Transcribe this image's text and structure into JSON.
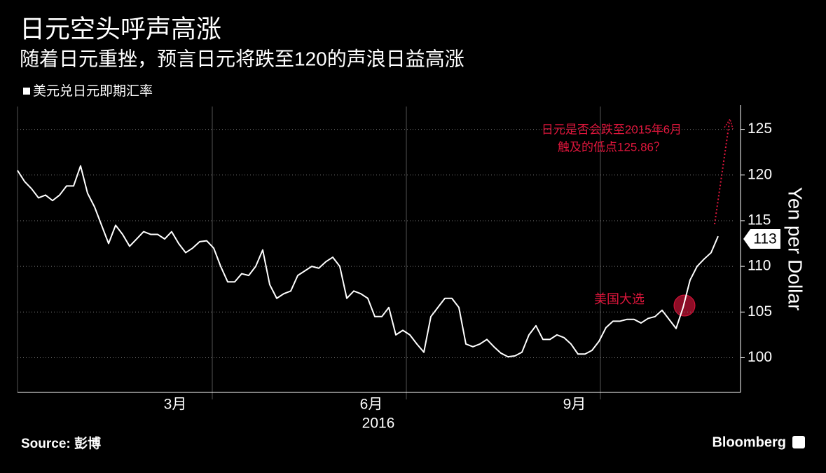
{
  "chart_data": {
    "type": "line",
    "title": "日元空头呼声高涨",
    "subtitle": "随着日元重挫，预言日元将跌至120的声浪日益高涨",
    "y_label": "Yen per Dollar",
    "x_sublabel": "2016",
    "source": "Source: 彭博",
    "brand": "Bloomberg",
    "annotations": [
      "日元是否会跌至2015年6月",
      "触及的低点125.86？",
      "美国大选"
    ],
    "last_label": 113,
    "categories": [
      null,
      null,
      null,
      null,
      null,
      null,
      null,
      null,
      null,
      null,
      null,
      null,
      null,
      null,
      null,
      null,
      null,
      null,
      null,
      null,
      null,
      null,
      "3月",
      null,
      null,
      null,
      null,
      null,
      null,
      null,
      null,
      null,
      null,
      null,
      null,
      null,
      null,
      null,
      null,
      null,
      null,
      null,
      null,
      null,
      null,
      null,
      null,
      null,
      null,
      null,
      "6月",
      null,
      null,
      null,
      null,
      null,
      null,
      null,
      null,
      null,
      null,
      null,
      null,
      null,
      null,
      null,
      null,
      null,
      null,
      null,
      null,
      null,
      null,
      null,
      null,
      null,
      null,
      null,
      null,
      "9月",
      null,
      null,
      null,
      null,
      null,
      null,
      null,
      null,
      null,
      null,
      null,
      null,
      null,
      null,
      null,
      null,
      null,
      null,
      null,
      null,
      null,
      null,
      null
    ],
    "series": [
      {
        "name": "美元兑日元即期汇率",
        "color": "#ffffff",
        "values": [
          120.5,
          119.3,
          118.5,
          117.5,
          117.8,
          117.2,
          117.8,
          118.8,
          118.8,
          121,
          118,
          116.5,
          114.5,
          112.5,
          114.5,
          113.5,
          112.2,
          113,
          113.8,
          113.5,
          113.5,
          113,
          113.8,
          112.5,
          111.5,
          112,
          112.7,
          112.8,
          112,
          110,
          108.3,
          108.3,
          109.2,
          109,
          110,
          111.8,
          108,
          106.5,
          107,
          107.3,
          109,
          109.5,
          110,
          109.8,
          110.5,
          111,
          110,
          106.5,
          107.3,
          107,
          106.5,
          104.5,
          104.5,
          105.5,
          102.5,
          103,
          102.5,
          101.5,
          100.6,
          104.5,
          105.5,
          106.5,
          106.5,
          105.5,
          101.5,
          101.2,
          101.5,
          102,
          101.2,
          100.5,
          100.1,
          100.2,
          100.6,
          102.5,
          103.5,
          102,
          102,
          102.5,
          102.2,
          101.5,
          100.4,
          100.4,
          100.8,
          101.8,
          103.3,
          104,
          104,
          104.2,
          104.2,
          103.8,
          104.3,
          104.5,
          105.2,
          104.2,
          103.2,
          105.5,
          108.5,
          110,
          110.8,
          111.5,
          113.3,
          null,
          null
        ]
      }
    ],
    "ylim": [
      96.2,
      127.5
    ],
    "yticks": [
      100,
      105,
      110,
      115,
      120,
      125
    ],
    "grid": true,
    "annotation_color": "#e0163c"
  }
}
